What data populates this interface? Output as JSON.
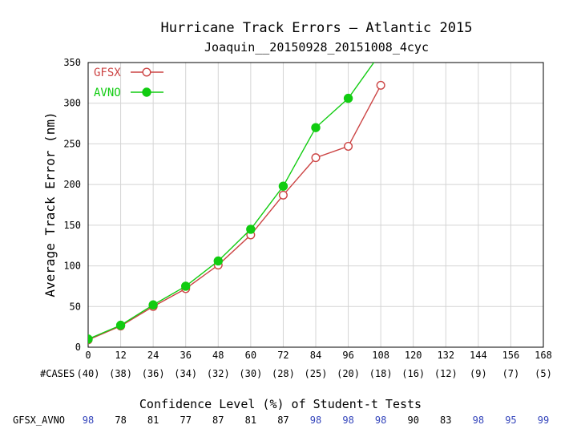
{
  "chart_data": {
    "type": "line",
    "title": "Hurricane Track Errors — Atlantic 2015",
    "subtitle": "Joaquin__20150928_20151008_4cyc",
    "ylabel": "Average Track Error (nm)",
    "xlabel": "",
    "xlim": [
      0,
      168
    ],
    "ylim": [
      0,
      350
    ],
    "x_ticks": [
      "0",
      "12",
      "24",
      "36",
      "48",
      "60",
      "72",
      "84",
      "96",
      "108",
      "120",
      "132",
      "144",
      "156",
      "168"
    ],
    "y_ticks": [
      "0",
      "50",
      "100",
      "150",
      "200",
      "250",
      "300",
      "350"
    ],
    "grid": true,
    "legend_position": "top-left",
    "x": [
      0,
      12,
      24,
      36,
      48,
      60,
      72,
      84,
      96,
      108
    ],
    "series": [
      {
        "name": "GFSX",
        "color": "#cc4444",
        "marker": "open-circle",
        "values": [
          9,
          26,
          50,
          72,
          101,
          138,
          187,
          233,
          247,
          322
        ]
      },
      {
        "name": "AVNO",
        "color": "#11cc11",
        "marker": "filled-circle",
        "values": [
          10,
          27,
          52,
          75,
          106,
          145,
          198,
          270,
          306,
          362
        ]
      }
    ],
    "cases_label": "#CASES",
    "cases": [
      "(40)",
      "(38)",
      "(36)",
      "(34)",
      "(32)",
      "(30)",
      "(28)",
      "(25)",
      "(20)",
      "(18)",
      "(16)",
      "(12)",
      "(9)",
      "(7)",
      "(5)"
    ],
    "confidence_title": "Confidence Level (%) of Student-t Tests",
    "confidence_row_label": "GFSX_AVNO",
    "confidence": [
      "98",
      "78",
      "81",
      "77",
      "87",
      "81",
      "87",
      "98",
      "98",
      "98",
      "90",
      "83",
      "98",
      "95",
      "99"
    ],
    "confidence_colors": {
      "significant": "#3344bb",
      "normal": "#000000"
    },
    "confidence_significant": [
      true,
      false,
      false,
      false,
      false,
      false,
      false,
      true,
      true,
      true,
      false,
      false,
      true,
      true,
      true
    ]
  }
}
